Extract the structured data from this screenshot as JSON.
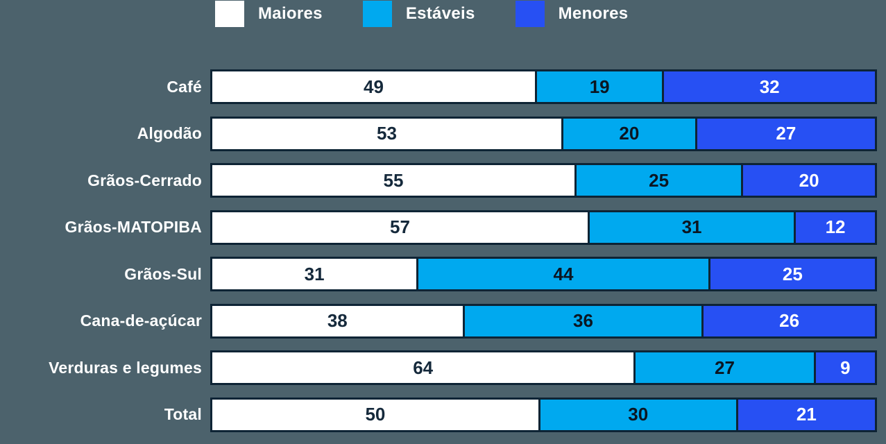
{
  "background_color": "#4C626C",
  "border_color": "#0E2435",
  "legend": {
    "position": "top",
    "items": [
      {
        "label": "Maiores",
        "color": "#FFFFFF"
      },
      {
        "label": "Estáveis",
        "color": "#00A9EF"
      },
      {
        "label": "Menores",
        "color": "#2750F3"
      }
    ]
  },
  "chart_data": {
    "type": "bar",
    "variant": "horizontal-stacked-100-percent",
    "title": "",
    "xlabel": "",
    "ylabel": "",
    "xlim": [
      0,
      100
    ],
    "grid": false,
    "legend_position": "top",
    "value_labels": "inside-center",
    "categories": [
      "Café",
      "Algodão",
      "Grãos-Cerrado",
      "Grãos-MATOPIBA",
      "Grãos-Sul",
      "Cana-de-açúcar",
      "Verduras e legumes",
      "Total"
    ],
    "series": [
      {
        "name": "Maiores",
        "color": "#FFFFFF",
        "text_color": "#15293B",
        "values": [
          49,
          53,
          55,
          57,
          31,
          38,
          64,
          50
        ]
      },
      {
        "name": "Estáveis",
        "color": "#00A9EF",
        "text_color": "#0B1622",
        "values": [
          19,
          20,
          25,
          31,
          44,
          36,
          27,
          30
        ]
      },
      {
        "name": "Menores",
        "color": "#2750F3",
        "text_color": "#FFFFFF",
        "values": [
          32,
          27,
          20,
          12,
          25,
          26,
          9,
          21
        ]
      }
    ]
  }
}
